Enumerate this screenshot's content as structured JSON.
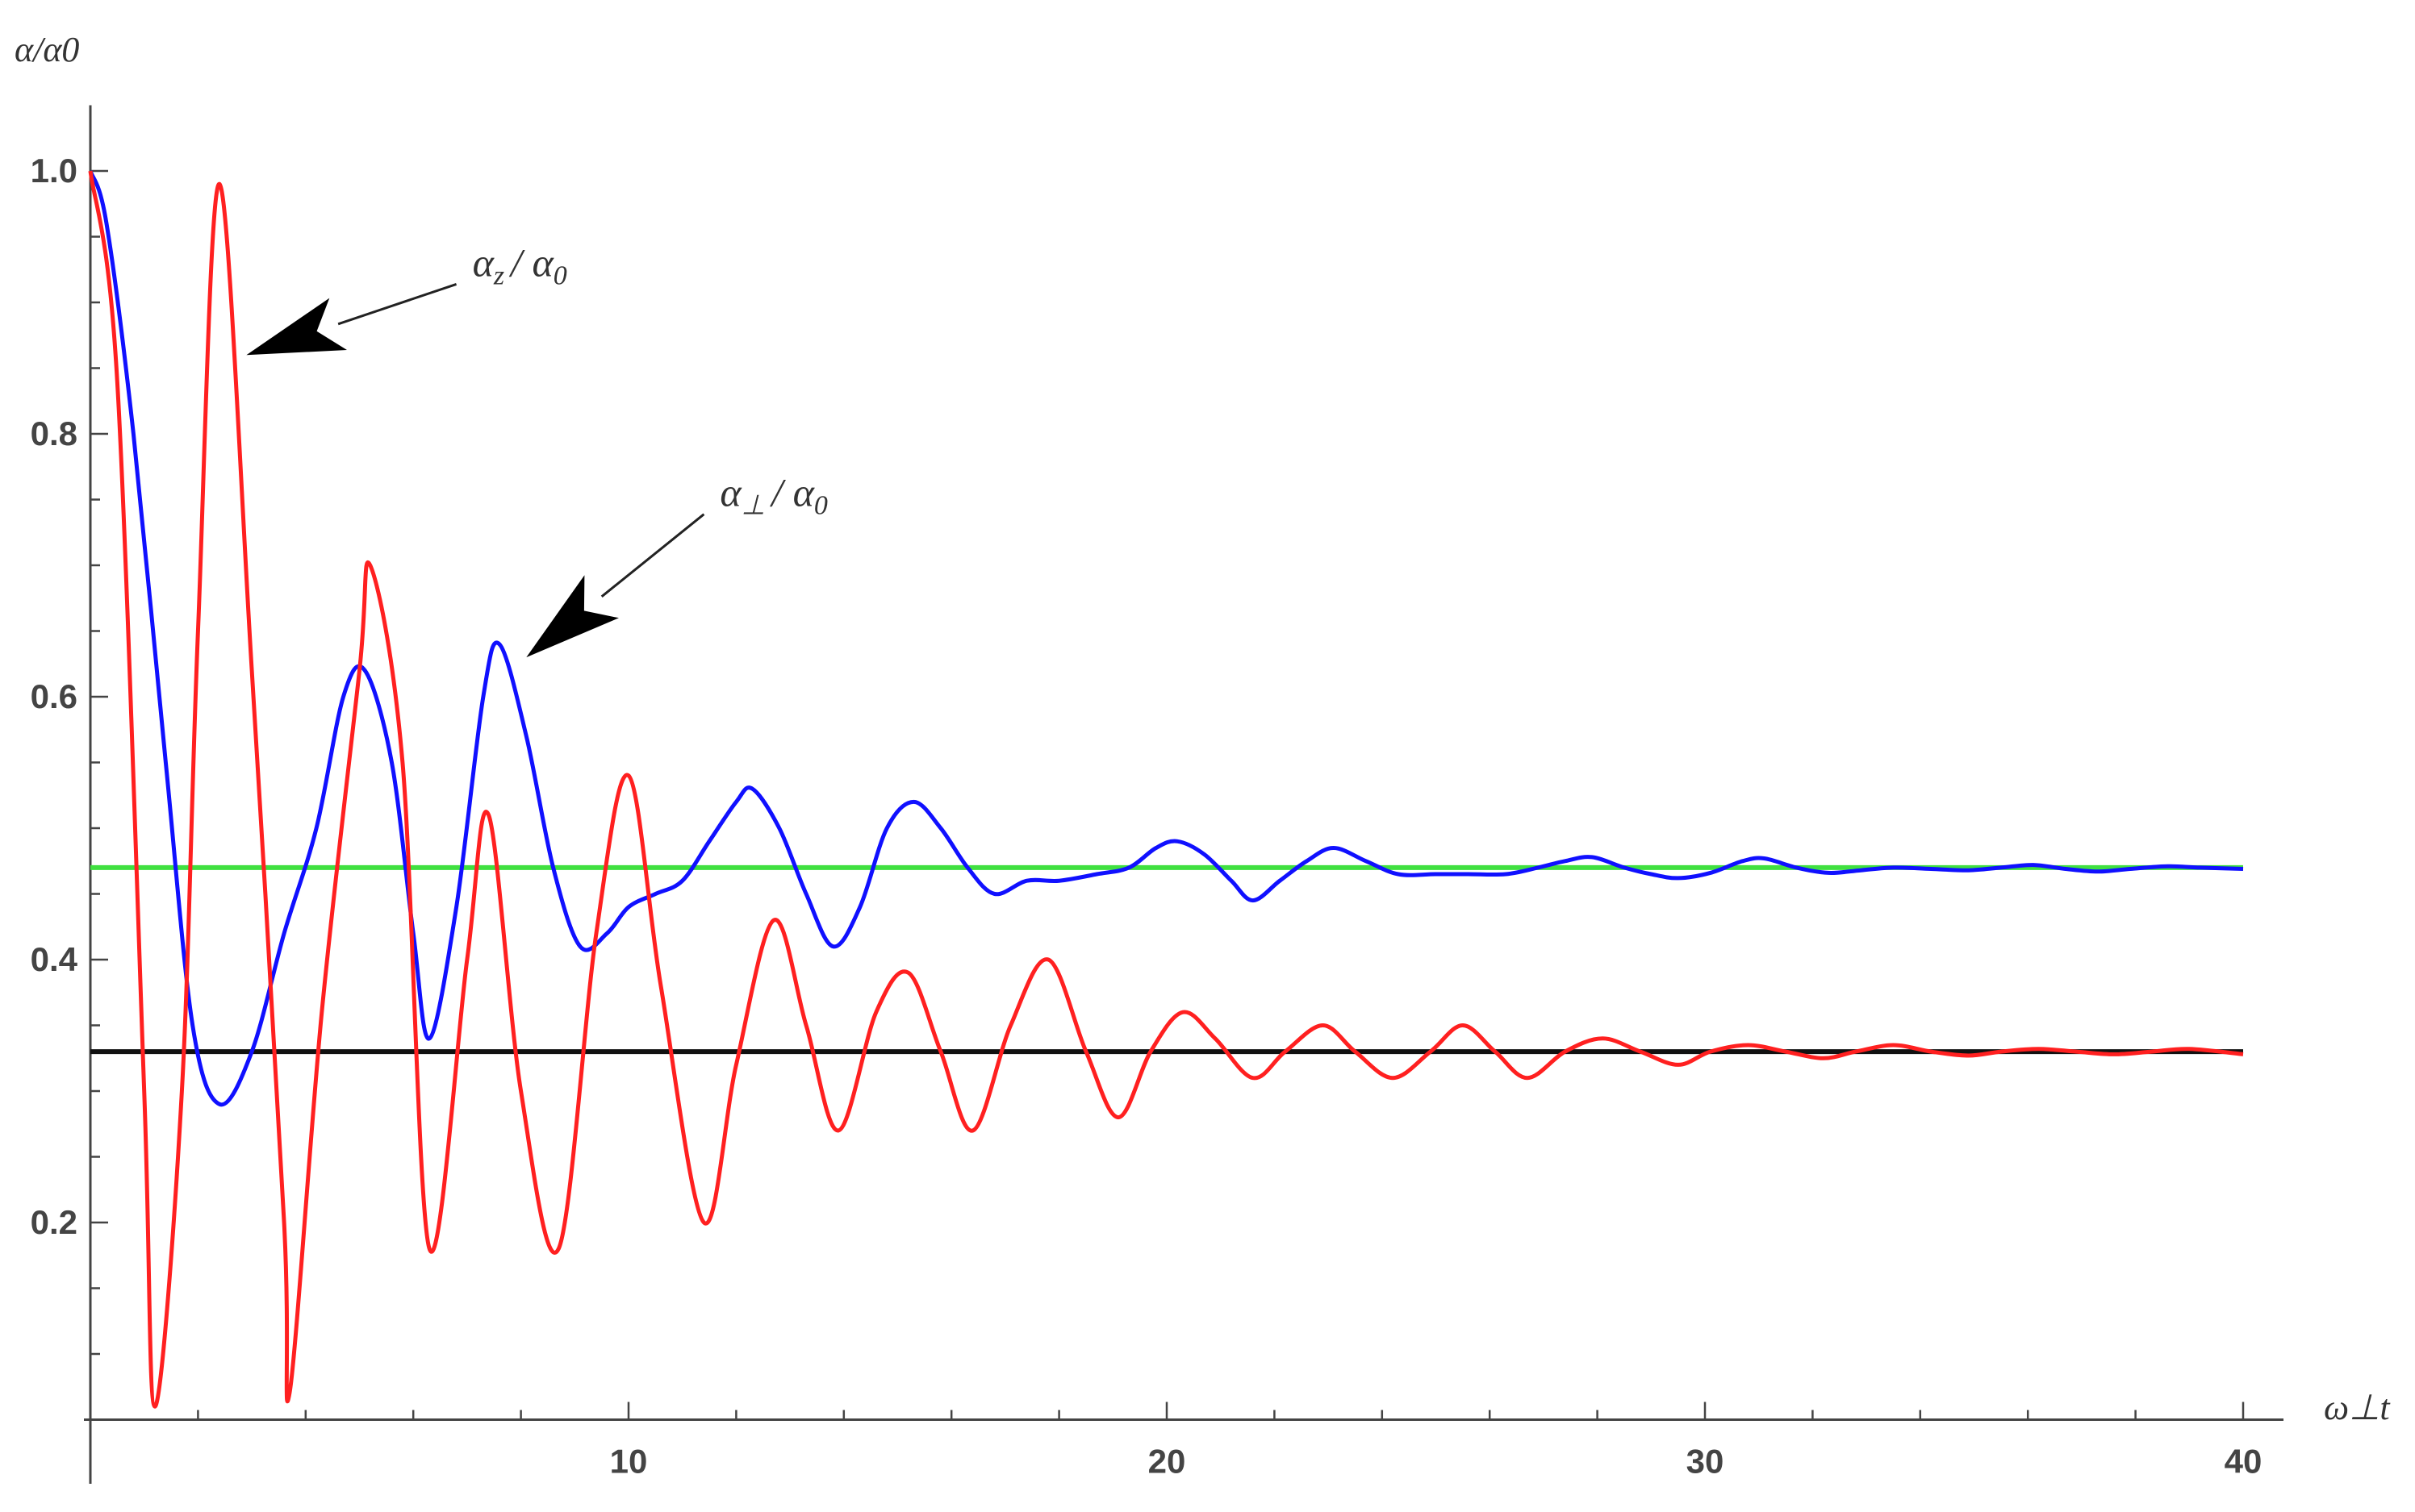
{
  "chart_data": {
    "type": "line",
    "xlabel": "ω⊥t",
    "ylabel": "α/α0",
    "xlim": [
      0,
      40
    ],
    "ylim": [
      0.05,
      1.05
    ],
    "xticks": [
      10,
      20,
      30,
      40
    ],
    "yticks": [
      0.2,
      0.4,
      0.6,
      0.8,
      1.0
    ],
    "ytick_labels": [
      "0.2",
      "0.4",
      "0.6",
      "0.8",
      "1.0"
    ],
    "series": [
      {
        "color": "#ff2020",
        "points": [
          [
            0,
            1.0
          ],
          [
            0.5,
            0.84
          ],
          [
            1.0,
            0.3
          ],
          [
            1.2,
            0.06
          ],
          [
            1.7,
            0.3
          ],
          [
            2.0,
            0.65
          ],
          [
            2.4,
            0.99
          ],
          [
            3.0,
            0.62
          ],
          [
            3.6,
            0.2
          ],
          [
            3.7,
            0.07
          ],
          [
            4.3,
            0.36
          ],
          [
            5.0,
            0.62
          ],
          [
            5.2,
            0.7
          ],
          [
            5.8,
            0.55
          ],
          [
            6.3,
            0.18
          ],
          [
            7.0,
            0.4
          ],
          [
            7.4,
            0.51
          ],
          [
            8.0,
            0.3
          ],
          [
            8.7,
            0.18
          ],
          [
            9.4,
            0.42
          ],
          [
            10.0,
            0.54
          ],
          [
            10.6,
            0.38
          ],
          [
            11.4,
            0.2
          ],
          [
            12.0,
            0.32
          ],
          [
            12.7,
            0.43
          ],
          [
            13.3,
            0.35
          ],
          [
            13.9,
            0.27
          ],
          [
            14.6,
            0.36
          ],
          [
            15.2,
            0.39
          ],
          [
            15.8,
            0.33
          ],
          [
            16.4,
            0.27
          ],
          [
            17.1,
            0.35
          ],
          [
            17.8,
            0.4
          ],
          [
            18.5,
            0.33
          ],
          [
            19.1,
            0.28
          ],
          [
            19.7,
            0.33
          ],
          [
            20.3,
            0.36
          ],
          [
            20.9,
            0.34
          ],
          [
            21.6,
            0.31
          ],
          [
            22.2,
            0.33
          ],
          [
            22.9,
            0.35
          ],
          [
            23.5,
            0.33
          ],
          [
            24.2,
            0.31
          ],
          [
            24.9,
            0.33
          ],
          [
            25.5,
            0.35
          ],
          [
            26.1,
            0.33
          ],
          [
            26.7,
            0.31
          ],
          [
            27.4,
            0.33
          ],
          [
            28.1,
            0.34
          ],
          [
            28.8,
            0.33
          ],
          [
            29.5,
            0.32
          ],
          [
            30.1,
            0.33
          ],
          [
            30.8,
            0.335
          ],
          [
            31.5,
            0.33
          ],
          [
            32.2,
            0.325
          ],
          [
            32.8,
            0.33
          ],
          [
            33.5,
            0.335
          ],
          [
            34.2,
            0.33
          ],
          [
            34.9,
            0.327
          ],
          [
            35.5,
            0.33
          ],
          [
            36.2,
            0.332
          ],
          [
            36.9,
            0.33
          ],
          [
            37.6,
            0.328
          ],
          [
            38.3,
            0.33
          ],
          [
            39.0,
            0.332
          ],
          [
            40.0,
            0.328
          ]
        ]
      },
      {
        "color": "#1010ff",
        "points": [
          [
            0,
            1.0
          ],
          [
            0.3,
            0.96
          ],
          [
            0.8,
            0.8
          ],
          [
            1.4,
            0.55
          ],
          [
            1.9,
            0.35
          ],
          [
            2.4,
            0.29
          ],
          [
            3.0,
            0.33
          ],
          [
            3.6,
            0.42
          ],
          [
            4.2,
            0.5
          ],
          [
            4.7,
            0.6
          ],
          [
            5.1,
            0.62
          ],
          [
            5.6,
            0.55
          ],
          [
            6.0,
            0.42
          ],
          [
            6.3,
            0.34
          ],
          [
            6.8,
            0.44
          ],
          [
            7.3,
            0.6
          ],
          [
            7.6,
            0.64
          ],
          [
            8.1,
            0.57
          ],
          [
            8.6,
            0.47
          ],
          [
            9.1,
            0.41
          ],
          [
            9.6,
            0.42
          ],
          [
            10.0,
            0.44
          ],
          [
            10.5,
            0.45
          ],
          [
            11.0,
            0.46
          ],
          [
            11.5,
            0.49
          ],
          [
            12.0,
            0.52
          ],
          [
            12.3,
            0.53
          ],
          [
            12.8,
            0.5
          ],
          [
            13.3,
            0.45
          ],
          [
            13.8,
            0.41
          ],
          [
            14.3,
            0.44
          ],
          [
            14.8,
            0.5
          ],
          [
            15.3,
            0.52
          ],
          [
            15.8,
            0.5
          ],
          [
            16.3,
            0.47
          ],
          [
            16.8,
            0.45
          ],
          [
            17.4,
            0.46
          ],
          [
            18.0,
            0.46
          ],
          [
            18.7,
            0.465
          ],
          [
            19.3,
            0.47
          ],
          [
            19.8,
            0.485
          ],
          [
            20.2,
            0.49
          ],
          [
            20.7,
            0.48
          ],
          [
            21.2,
            0.46
          ],
          [
            21.6,
            0.445
          ],
          [
            22.1,
            0.46
          ],
          [
            22.6,
            0.475
          ],
          [
            23.1,
            0.485
          ],
          [
            23.7,
            0.475
          ],
          [
            24.3,
            0.465
          ],
          [
            25.0,
            0.465
          ],
          [
            25.6,
            0.465
          ],
          [
            26.3,
            0.465
          ],
          [
            26.9,
            0.47
          ],
          [
            27.4,
            0.475
          ],
          [
            27.9,
            0.478
          ],
          [
            28.5,
            0.47
          ],
          [
            29.0,
            0.465
          ],
          [
            29.5,
            0.462
          ],
          [
            30.1,
            0.466
          ],
          [
            30.7,
            0.475
          ],
          [
            31.1,
            0.477
          ],
          [
            31.7,
            0.47
          ],
          [
            32.3,
            0.466
          ],
          [
            32.9,
            0.468
          ],
          [
            33.5,
            0.47
          ],
          [
            34.2,
            0.469
          ],
          [
            34.9,
            0.468
          ],
          [
            35.5,
            0.47
          ],
          [
            36.1,
            0.472
          ],
          [
            36.7,
            0.469
          ],
          [
            37.3,
            0.467
          ],
          [
            37.9,
            0.469
          ],
          [
            38.6,
            0.471
          ],
          [
            39.2,
            0.47
          ],
          [
            40.0,
            0.469
          ]
        ]
      },
      {
        "color": "#40e040",
        "points": [
          [
            0,
            0.47
          ],
          [
            40,
            0.47
          ]
        ]
      },
      {
        "color": "#111111",
        "points": [
          [
            0,
            0.33
          ],
          [
            40,
            0.33
          ]
        ]
      }
    ],
    "annotations": [
      {
        "text_main": "α",
        "text_sub": "z",
        "text_tail": "/ α",
        "text_tail_sub": "0",
        "x": 7.1,
        "y": 0.92,
        "arrow_to": [
          2.9,
          0.86
        ]
      },
      {
        "text_main": "α",
        "text_sub": "⊥",
        "text_tail": "/ α",
        "text_tail_sub": "0",
        "x": 11.7,
        "y": 0.745,
        "arrow_to": [
          8.1,
          0.63
        ]
      }
    ],
    "grid": false
  }
}
